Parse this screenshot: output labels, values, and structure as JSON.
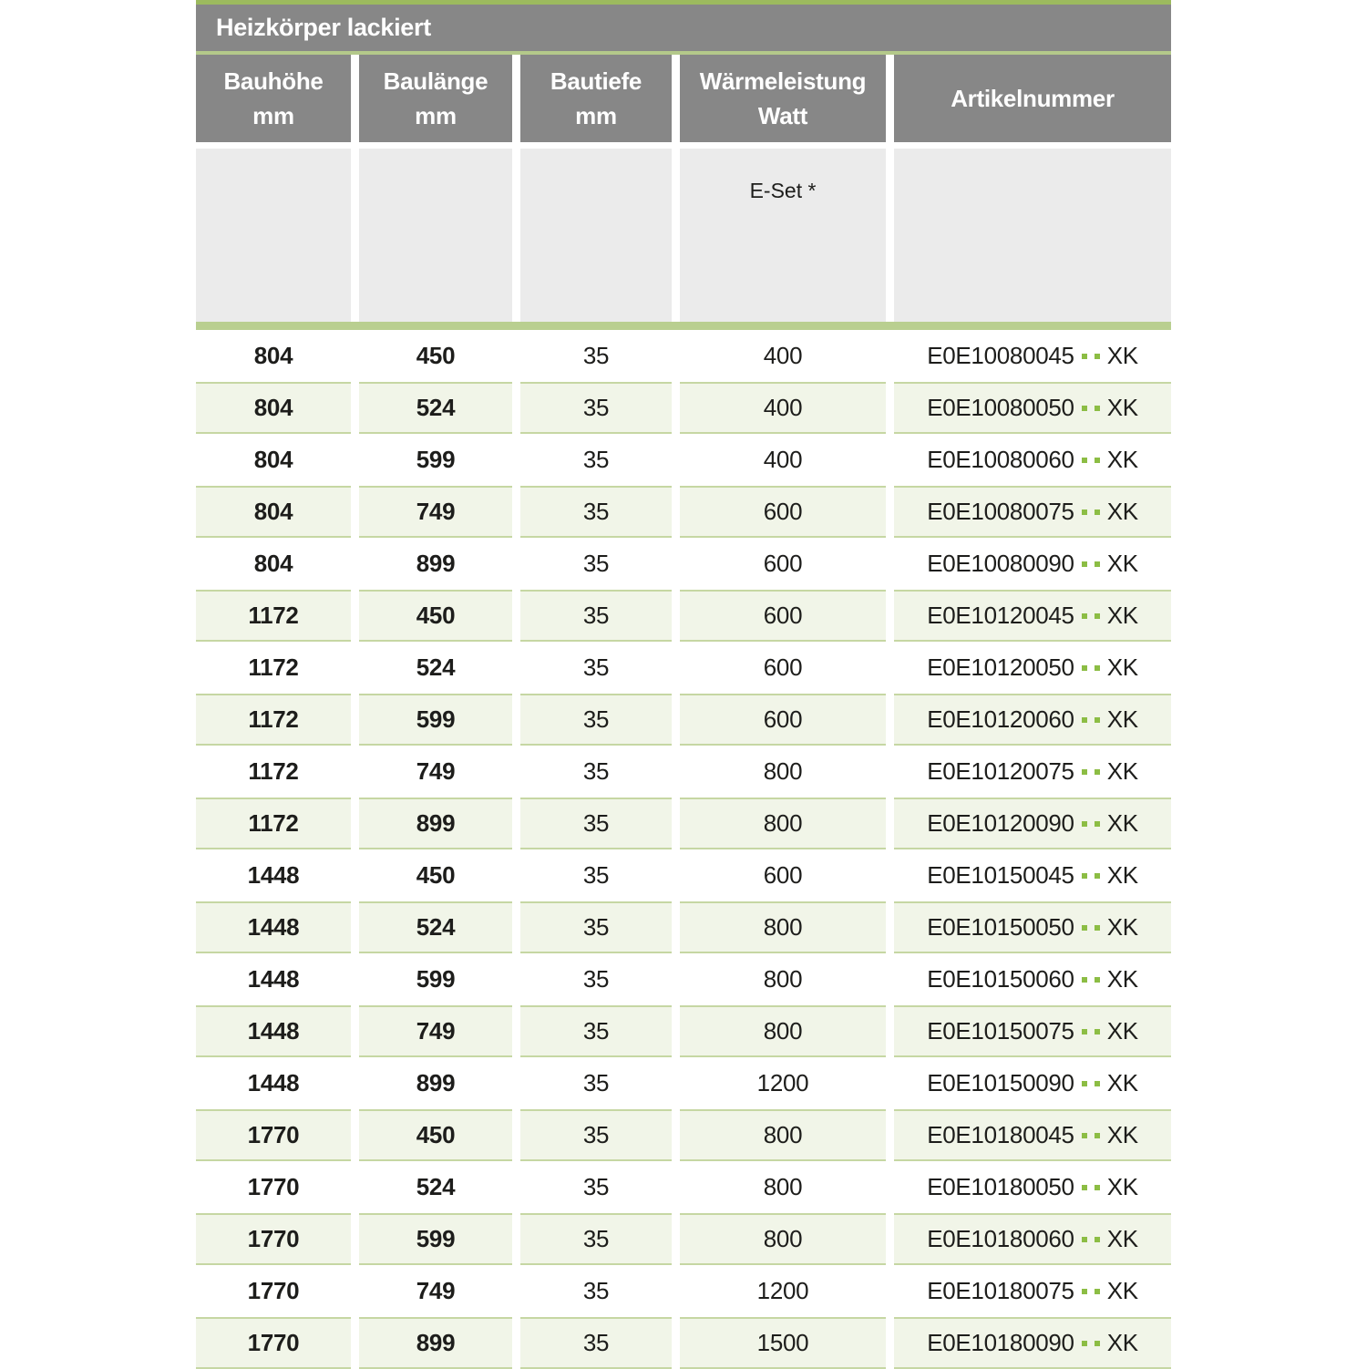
{
  "table": {
    "title": "Heizkörper lackiert",
    "columns": [
      {
        "label": "Bauhöhe",
        "sub": "mm"
      },
      {
        "label": "Baulänge",
        "sub": "mm"
      },
      {
        "label": "Bautiefe",
        "sub": "mm"
      },
      {
        "label": "Wärmeleistung",
        "sub": "Watt"
      },
      {
        "label": "Artikelnummer",
        "sub": ""
      }
    ],
    "subheader": {
      "eset_label": "E-Set *"
    },
    "artikel_dot_color": "#8cbd44",
    "accent_green": "#9cba5e",
    "header_gray": "#878787",
    "rows": [
      {
        "bauhoehe": "804",
        "baulaenge": "450",
        "bautiefe": "35",
        "watt": "400",
        "artikel_code": "E0E10080045",
        "artikel_suffix": "XK"
      },
      {
        "bauhoehe": "804",
        "baulaenge": "524",
        "bautiefe": "35",
        "watt": "400",
        "artikel_code": "E0E10080050",
        "artikel_suffix": "XK"
      },
      {
        "bauhoehe": "804",
        "baulaenge": "599",
        "bautiefe": "35",
        "watt": "400",
        "artikel_code": "E0E10080060",
        "artikel_suffix": "XK"
      },
      {
        "bauhoehe": "804",
        "baulaenge": "749",
        "bautiefe": "35",
        "watt": "600",
        "artikel_code": "E0E10080075",
        "artikel_suffix": "XK"
      },
      {
        "bauhoehe": "804",
        "baulaenge": "899",
        "bautiefe": "35",
        "watt": "600",
        "artikel_code": "E0E10080090",
        "artikel_suffix": "XK"
      },
      {
        "bauhoehe": "1172",
        "baulaenge": "450",
        "bautiefe": "35",
        "watt": "600",
        "artikel_code": "E0E10120045",
        "artikel_suffix": "XK"
      },
      {
        "bauhoehe": "1172",
        "baulaenge": "524",
        "bautiefe": "35",
        "watt": "600",
        "artikel_code": "E0E10120050",
        "artikel_suffix": "XK"
      },
      {
        "bauhoehe": "1172",
        "baulaenge": "599",
        "bautiefe": "35",
        "watt": "600",
        "artikel_code": "E0E10120060",
        "artikel_suffix": "XK"
      },
      {
        "bauhoehe": "1172",
        "baulaenge": "749",
        "bautiefe": "35",
        "watt": "800",
        "artikel_code": "E0E10120075",
        "artikel_suffix": "XK"
      },
      {
        "bauhoehe": "1172",
        "baulaenge": "899",
        "bautiefe": "35",
        "watt": "800",
        "artikel_code": "E0E10120090",
        "artikel_suffix": "XK"
      },
      {
        "bauhoehe": "1448",
        "baulaenge": "450",
        "bautiefe": "35",
        "watt": "600",
        "artikel_code": "E0E10150045",
        "artikel_suffix": "XK"
      },
      {
        "bauhoehe": "1448",
        "baulaenge": "524",
        "bautiefe": "35",
        "watt": "800",
        "artikel_code": "E0E10150050",
        "artikel_suffix": "XK"
      },
      {
        "bauhoehe": "1448",
        "baulaenge": "599",
        "bautiefe": "35",
        "watt": "800",
        "artikel_code": "E0E10150060",
        "artikel_suffix": "XK"
      },
      {
        "bauhoehe": "1448",
        "baulaenge": "749",
        "bautiefe": "35",
        "watt": "800",
        "artikel_code": "E0E10150075",
        "artikel_suffix": "XK"
      },
      {
        "bauhoehe": "1448",
        "baulaenge": "899",
        "bautiefe": "35",
        "watt": "1200",
        "artikel_code": "E0E10150090",
        "artikel_suffix": "XK"
      },
      {
        "bauhoehe": "1770",
        "baulaenge": "450",
        "bautiefe": "35",
        "watt": "800",
        "artikel_code": "E0E10180045",
        "artikel_suffix": "XK"
      },
      {
        "bauhoehe": "1770",
        "baulaenge": "524",
        "bautiefe": "35",
        "watt": "800",
        "artikel_code": "E0E10180050",
        "artikel_suffix": "XK"
      },
      {
        "bauhoehe": "1770",
        "baulaenge": "599",
        "bautiefe": "35",
        "watt": "800",
        "artikel_code": "E0E10180060",
        "artikel_suffix": "XK"
      },
      {
        "bauhoehe": "1770",
        "baulaenge": "749",
        "bautiefe": "35",
        "watt": "1200",
        "artikel_code": "E0E10180075",
        "artikel_suffix": "XK"
      },
      {
        "bauhoehe": "1770",
        "baulaenge": "899",
        "bautiefe": "35",
        "watt": "1500",
        "artikel_code": "E0E10180090",
        "artikel_suffix": "XK"
      }
    ]
  }
}
